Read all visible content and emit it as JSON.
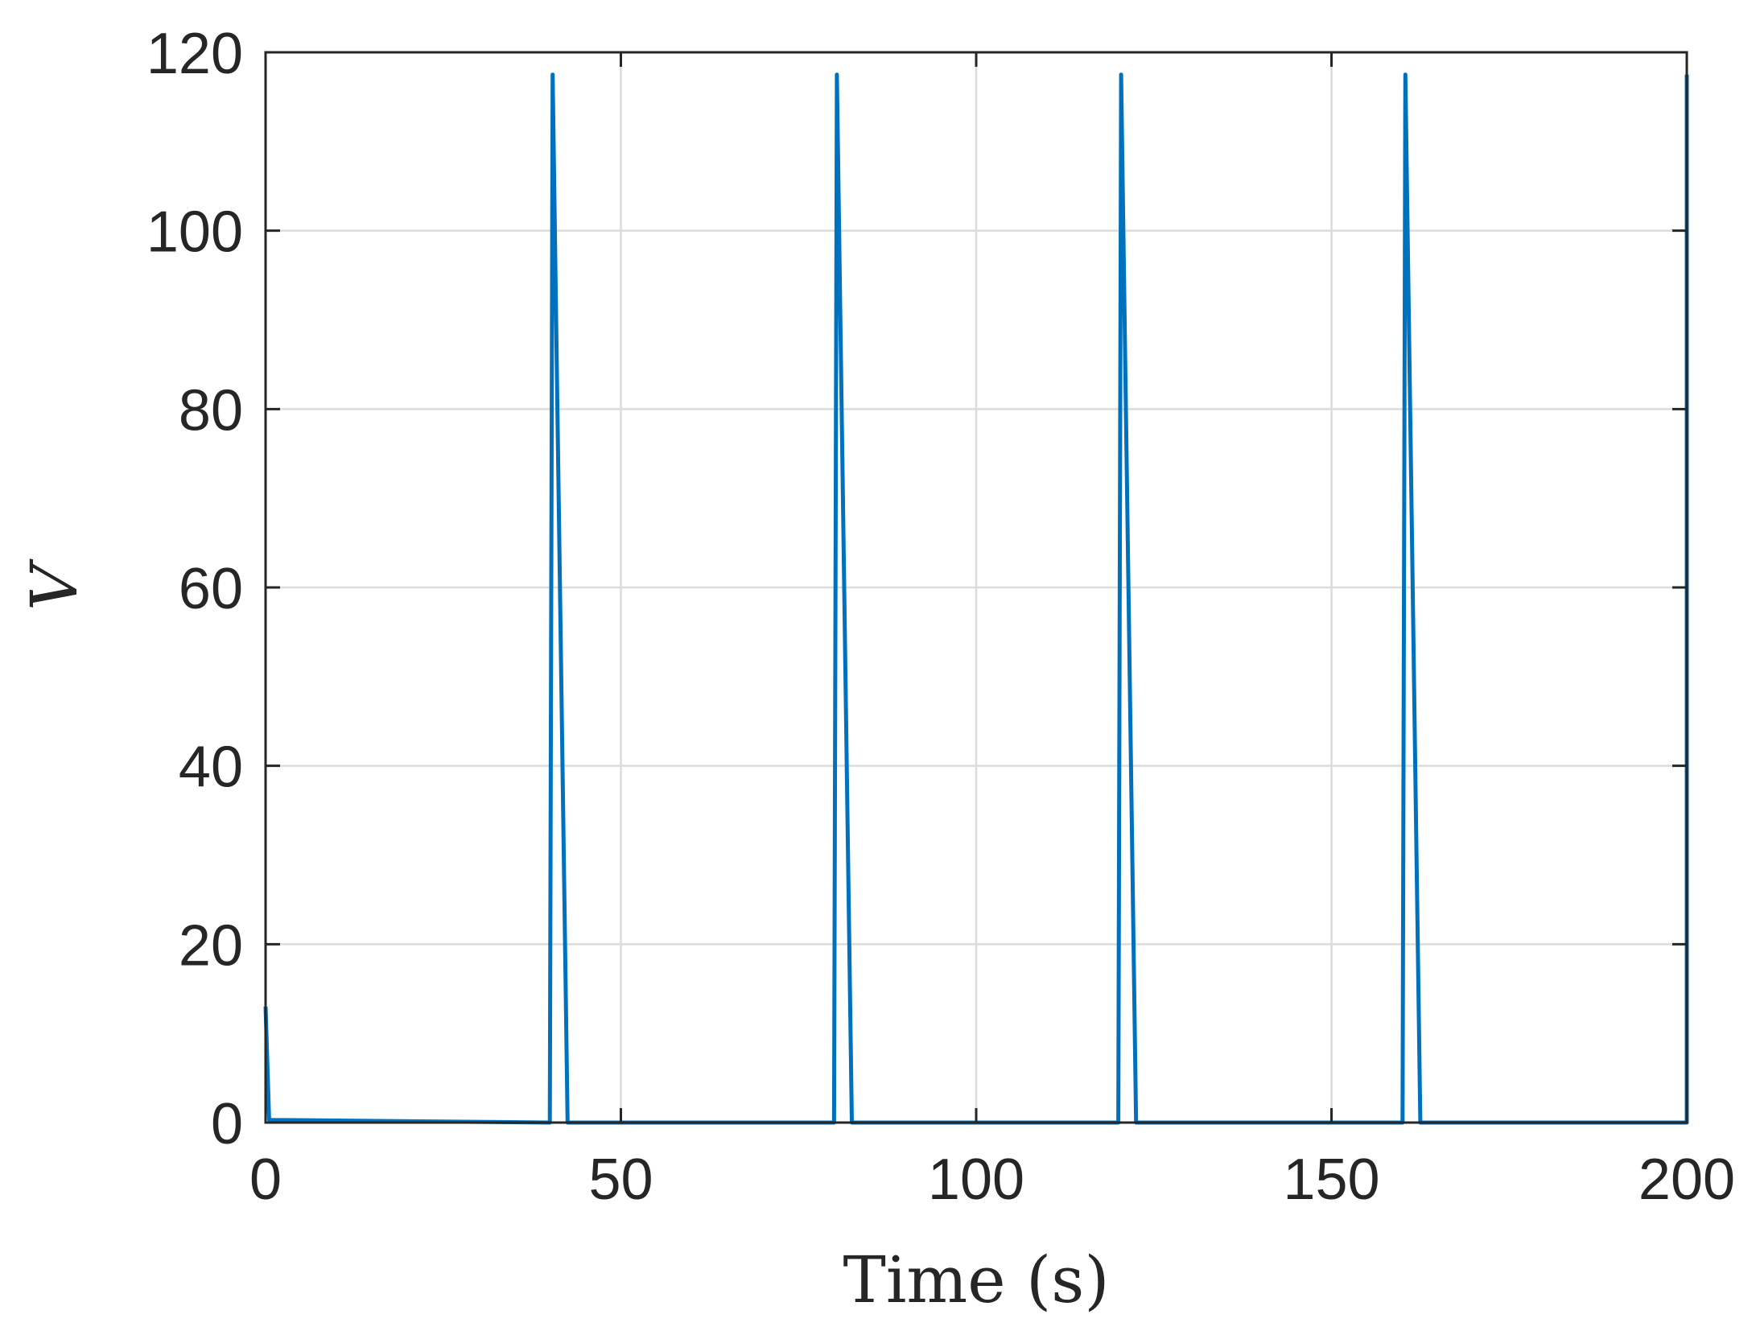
{
  "chart_data": {
    "type": "line",
    "title": "",
    "xlabel": "Time (s)",
    "ylabel": "V",
    "xlim": [
      0,
      200
    ],
    "ylim": [
      0,
      120
    ],
    "xticks": [
      0,
      50,
      100,
      150,
      200
    ],
    "yticks": [
      0,
      20,
      40,
      60,
      80,
      100,
      120
    ],
    "xtick_labels": [
      "0",
      "50",
      "100",
      "150",
      "200"
    ],
    "ytick_labels": [
      "0",
      "20",
      "40",
      "60",
      "80",
      "100",
      "120"
    ],
    "grid": true,
    "series": [
      {
        "color": "#0072BD",
        "x": [
          0,
          0.5,
          40,
          40.4,
          42.5,
          80,
          80.4,
          82.5,
          120,
          120.4,
          122.5,
          160,
          160.4,
          162.5,
          200,
          200
        ],
        "y": [
          13,
          0.3,
          0,
          117.5,
          0,
          0,
          117.5,
          0,
          0,
          117.5,
          0,
          0,
          117.5,
          0,
          0,
          117.5
        ]
      }
    ]
  }
}
